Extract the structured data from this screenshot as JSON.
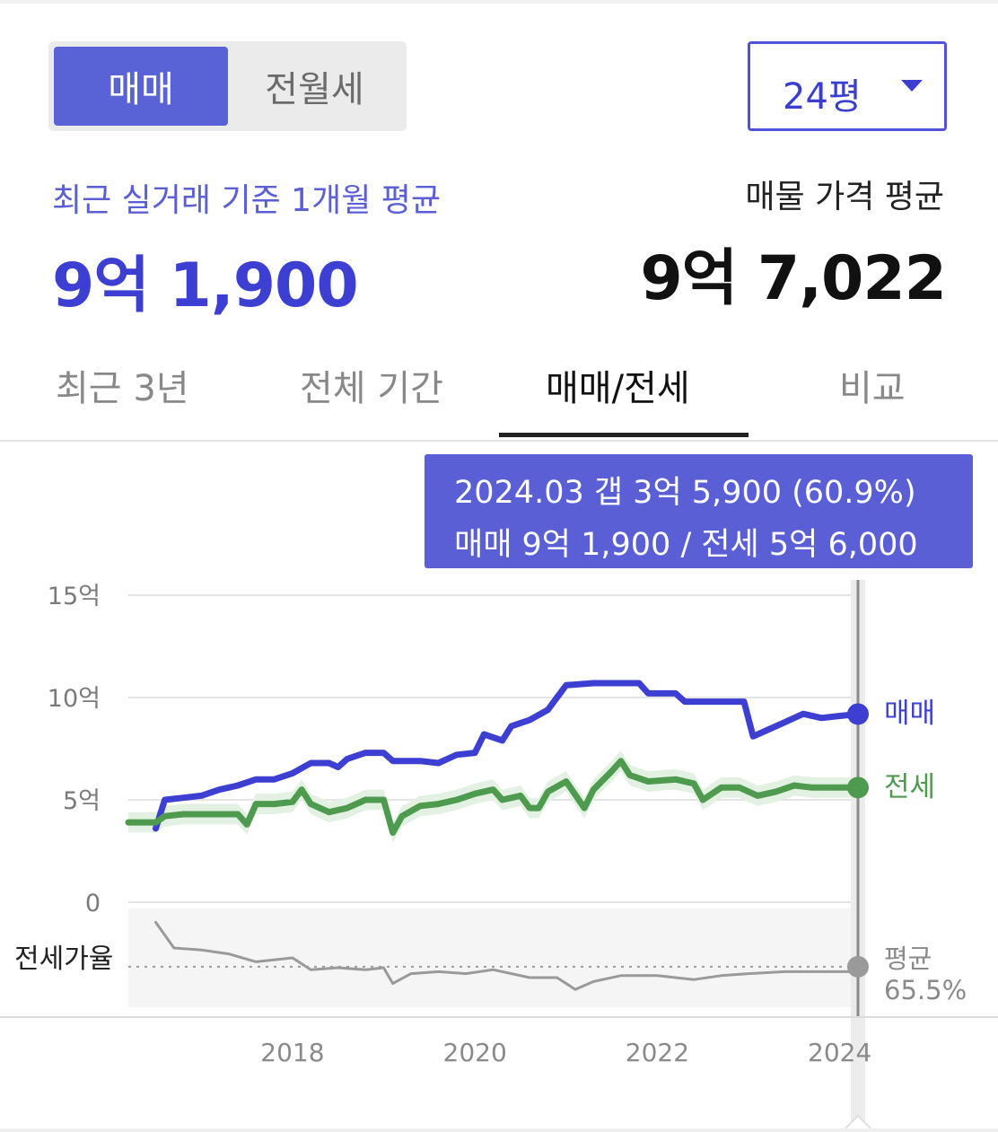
{
  "deal_toggle": {
    "active": "매매",
    "inactive": "전월세"
  },
  "area_select": {
    "value": "24평"
  },
  "summary": {
    "left_label": "최근 실거래 기준 1개월 평균",
    "left_value": "9억 1,900",
    "right_label": "매물 가격 평균",
    "right_value": "9억 7,022"
  },
  "tabs": [
    {
      "label": "최근 3년"
    },
    {
      "label": "전체 기간"
    },
    {
      "label": "매매/전세"
    },
    {
      "label": "비교"
    }
  ],
  "tooltip": {
    "line1": "2024.03  갭 3억 5,900 (60.9%)",
    "line2": "매매 9억 1,900 / 전세 5억 6,000"
  },
  "colors": {
    "sale": "#3c3fd1",
    "jeonse": "#4e9a4e",
    "ratio": "#9a9a9a",
    "accent": "#5a5fd6"
  },
  "chart_data": {
    "type": "line",
    "y_ticks": [
      "15억",
      "10억",
      "5억",
      "0"
    ],
    "ylim": [
      0,
      15
    ],
    "x_ticks": [
      "2018",
      "2020",
      "2022",
      "2024"
    ],
    "xlim": [
      2016.2,
      2024.2
    ],
    "grid": true,
    "series": [
      {
        "name": "매매",
        "unit": "억",
        "points": [
          [
            2016.5,
            3.6
          ],
          [
            2016.6,
            5.0
          ],
          [
            2016.8,
            5.1
          ],
          [
            2017.0,
            5.2
          ],
          [
            2017.2,
            5.5
          ],
          [
            2017.4,
            5.7
          ],
          [
            2017.6,
            6.0
          ],
          [
            2017.8,
            6.0
          ],
          [
            2018.0,
            6.3
          ],
          [
            2018.2,
            6.8
          ],
          [
            2018.4,
            6.8
          ],
          [
            2018.5,
            6.6
          ],
          [
            2018.6,
            7.0
          ],
          [
            2018.8,
            7.3
          ],
          [
            2019.0,
            7.3
          ],
          [
            2019.1,
            6.9
          ],
          [
            2019.4,
            6.9
          ],
          [
            2019.6,
            6.8
          ],
          [
            2019.8,
            7.2
          ],
          [
            2020.0,
            7.3
          ],
          [
            2020.1,
            8.2
          ],
          [
            2020.3,
            7.9
          ],
          [
            2020.4,
            8.6
          ],
          [
            2020.6,
            8.9
          ],
          [
            2020.8,
            9.4
          ],
          [
            2020.9,
            10.0
          ],
          [
            2021.0,
            10.6
          ],
          [
            2021.3,
            10.7
          ],
          [
            2021.8,
            10.7
          ],
          [
            2021.9,
            10.2
          ],
          [
            2022.2,
            10.2
          ],
          [
            2022.3,
            9.8
          ],
          [
            2022.6,
            9.8
          ],
          [
            2022.8,
            9.8
          ],
          [
            2022.95,
            9.8
          ],
          [
            2023.05,
            8.1
          ],
          [
            2023.2,
            8.4
          ],
          [
            2023.4,
            8.8
          ],
          [
            2023.6,
            9.2
          ],
          [
            2023.8,
            9.0
          ],
          [
            2024.0,
            9.1
          ],
          [
            2024.2,
            9.19
          ]
        ]
      },
      {
        "name": "전세",
        "unit": "억",
        "points": [
          [
            2016.2,
            3.9
          ],
          [
            2016.5,
            3.9
          ],
          [
            2016.6,
            4.2
          ],
          [
            2016.8,
            4.3
          ],
          [
            2017.2,
            4.3
          ],
          [
            2017.4,
            4.3
          ],
          [
            2017.5,
            3.8
          ],
          [
            2017.6,
            4.8
          ],
          [
            2017.8,
            4.8
          ],
          [
            2018.0,
            4.9
          ],
          [
            2018.1,
            5.5
          ],
          [
            2018.2,
            4.8
          ],
          [
            2018.4,
            4.4
          ],
          [
            2018.6,
            4.6
          ],
          [
            2018.8,
            5.0
          ],
          [
            2019.0,
            5.0
          ],
          [
            2019.1,
            3.4
          ],
          [
            2019.2,
            4.2
          ],
          [
            2019.4,
            4.7
          ],
          [
            2019.6,
            4.8
          ],
          [
            2019.8,
            5.0
          ],
          [
            2020.0,
            5.3
          ],
          [
            2020.2,
            5.5
          ],
          [
            2020.3,
            5.0
          ],
          [
            2020.5,
            5.2
          ],
          [
            2020.6,
            4.6
          ],
          [
            2020.7,
            4.6
          ],
          [
            2020.8,
            5.4
          ],
          [
            2021.0,
            5.9
          ],
          [
            2021.2,
            4.6
          ],
          [
            2021.3,
            5.5
          ],
          [
            2021.5,
            6.4
          ],
          [
            2021.6,
            6.9
          ],
          [
            2021.7,
            6.2
          ],
          [
            2021.9,
            5.9
          ],
          [
            2022.2,
            6.0
          ],
          [
            2022.4,
            5.8
          ],
          [
            2022.5,
            5.0
          ],
          [
            2022.7,
            5.6
          ],
          [
            2022.9,
            5.6
          ],
          [
            2023.1,
            5.2
          ],
          [
            2023.3,
            5.4
          ],
          [
            2023.5,
            5.7
          ],
          [
            2023.7,
            5.6
          ],
          [
            2023.9,
            5.6
          ],
          [
            2024.2,
            5.6
          ]
        ]
      },
      {
        "name": "전세가율",
        "unit": "%",
        "points": [
          [
            2016.5,
            88
          ],
          [
            2016.7,
            75
          ],
          [
            2017.0,
            74
          ],
          [
            2017.3,
            72
          ],
          [
            2017.6,
            68
          ],
          [
            2018.0,
            70
          ],
          [
            2018.2,
            64
          ],
          [
            2018.5,
            65
          ],
          [
            2018.8,
            64
          ],
          [
            2019.0,
            65
          ],
          [
            2019.1,
            57
          ],
          [
            2019.3,
            62
          ],
          [
            2019.6,
            63
          ],
          [
            2019.9,
            62
          ],
          [
            2020.2,
            64
          ],
          [
            2020.6,
            60
          ],
          [
            2020.9,
            60
          ],
          [
            2021.1,
            54
          ],
          [
            2021.3,
            58
          ],
          [
            2021.6,
            61
          ],
          [
            2022.0,
            61
          ],
          [
            2022.4,
            59
          ],
          [
            2022.7,
            61
          ],
          [
            2023.0,
            62
          ],
          [
            2023.4,
            63
          ],
          [
            2023.7,
            63
          ],
          [
            2024.2,
            63
          ]
        ]
      }
    ],
    "ratio_label": "전세가율",
    "ratio_average_label": "평균",
    "ratio_average": 65.5,
    "ratio_average_text": "65.5%",
    "end_labels": [
      "매매",
      "전세"
    ]
  }
}
